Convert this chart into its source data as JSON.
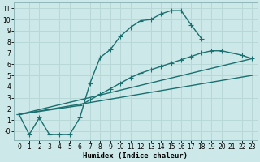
{
  "xlabel": "Humidex (Indice chaleur)",
  "background_color": "#cce8e8",
  "grid_color": "#b8d8d8",
  "line_color": "#1a7070",
  "xlim": [
    -0.5,
    23.5
  ],
  "ylim": [
    -0.8,
    11.5
  ],
  "xticks": [
    0,
    1,
    2,
    3,
    4,
    5,
    6,
    7,
    8,
    9,
    10,
    11,
    12,
    13,
    14,
    15,
    16,
    17,
    18,
    19,
    20,
    21,
    22,
    23
  ],
  "yticks": [
    0,
    1,
    2,
    3,
    4,
    5,
    6,
    7,
    8,
    9,
    10,
    11
  ],
  "curve1_x": [
    0,
    1,
    2,
    3,
    4,
    5,
    6,
    7,
    8,
    9,
    10,
    11,
    12,
    13,
    14,
    15,
    16,
    17,
    18
  ],
  "curve1_y": [
    1.5,
    -0.3,
    1.2,
    -0.3,
    -0.3,
    -0.3,
    1.2,
    4.3,
    6.6,
    7.3,
    8.5,
    9.3,
    9.9,
    10.0,
    10.5,
    10.8,
    10.8,
    9.5,
    8.3
  ],
  "curve2_x": [
    0,
    6,
    7,
    8,
    9,
    10,
    11,
    12,
    13,
    14,
    15,
    16,
    17,
    18,
    19,
    20,
    21,
    22,
    23
  ],
  "curve2_y": [
    1.5,
    2.3,
    2.8,
    3.3,
    3.8,
    4.3,
    4.8,
    5.2,
    5.5,
    5.8,
    6.1,
    6.4,
    6.7,
    7.0,
    7.2,
    7.2,
    7.0,
    6.8,
    6.5
  ],
  "curve3_x": [
    0,
    23
  ],
  "curve3_y": [
    1.5,
    6.5
  ],
  "curve4_x": [
    0,
    23
  ],
  "curve4_y": [
    1.5,
    5.0
  ],
  "marker": "+",
  "markersize": 4,
  "linewidth": 1.0
}
